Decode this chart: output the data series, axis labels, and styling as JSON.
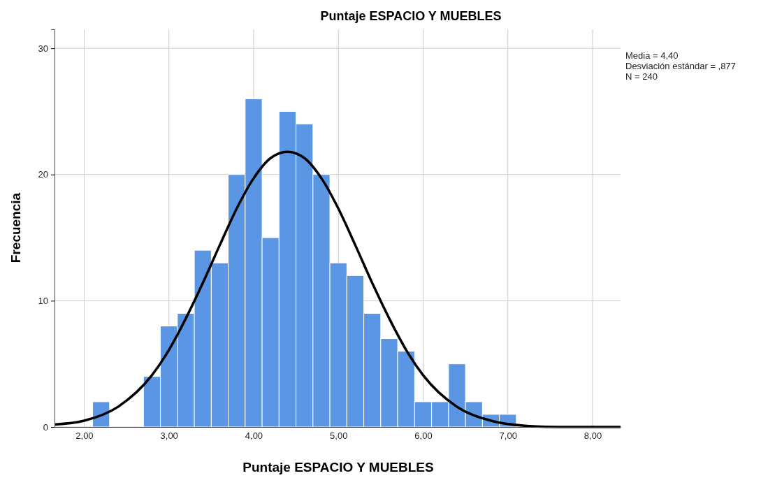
{
  "chart_data": {
    "type": "histogram",
    "title": "Puntaje ESPACIO Y MUEBLES",
    "xlabel": "Puntaje ESPACIO Y MUEBLES",
    "ylabel": "Frecuencia",
    "bins": [
      2.1,
      2.3,
      2.5,
      2.7,
      2.9,
      3.1,
      3.3,
      3.5,
      3.7,
      3.9,
      4.1,
      4.3,
      4.5,
      4.7,
      4.9,
      5.1,
      5.3,
      5.5,
      5.7,
      5.9,
      6.1,
      6.3,
      6.5,
      6.7,
      6.9,
      7.1
    ],
    "values": [
      2,
      0,
      0,
      4,
      8,
      9,
      14,
      13,
      20,
      26,
      15,
      25,
      24,
      20,
      13,
      12,
      9,
      7,
      6,
      2,
      2,
      5,
      2,
      1,
      1
    ],
    "color": "#5a96e3",
    "series": [
      {
        "type": "line",
        "color": "#000000",
        "x": [
          1.65,
          2.0,
          2.4,
          2.8,
          3.0,
          3.2,
          3.4,
          3.6,
          3.8,
          4.0,
          4.2,
          4.4,
          4.6,
          4.8,
          5.0,
          5.2,
          5.4,
          5.6,
          5.8,
          6.0,
          6.4,
          6.8,
          7.2,
          7.6,
          8.0,
          8.33
        ],
        "values": [
          0.2,
          0.5,
          1.6,
          4.1,
          6.1,
          8.6,
          11.4,
          14.4,
          17.3,
          19.7,
          21.3,
          21.8,
          21.3,
          19.7,
          17.3,
          14.4,
          11.4,
          8.6,
          6.1,
          4.1,
          1.6,
          0.5,
          0.1,
          0.0,
          0.0,
          0.0
        ]
      }
    ],
    "xlim": [
      1.65,
      8.33
    ],
    "ylim": [
      0,
      31.5
    ],
    "xticks": [
      {
        "value": 2,
        "label": "2,00"
      },
      {
        "value": 3,
        "label": "3,00"
      },
      {
        "value": 4,
        "label": "4,00"
      },
      {
        "value": 5,
        "label": "5,00"
      },
      {
        "value": 6,
        "label": "6,00"
      },
      {
        "value": 7,
        "label": "7,00"
      },
      {
        "value": 8,
        "label": "8,00"
      }
    ],
    "yticks": [
      0,
      10,
      20,
      30
    ],
    "grid": true,
    "annotations": [
      "Media = 4,40",
      "Desviación estándar = ,877",
      "N = 240"
    ]
  }
}
